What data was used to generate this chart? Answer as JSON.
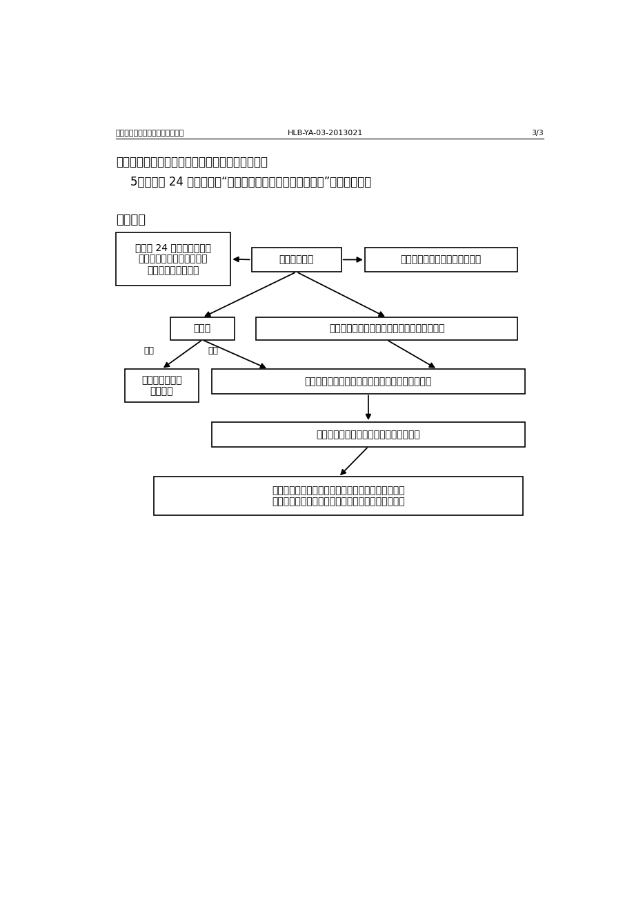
{
  "title_left": "用药错误的预防、应急预案及程序",
  "title_center": "HLB-YA-03-2013021",
  "title_right": "3/3",
  "intro_line1": "封存时，按《医疗事故处理条例》有关程序进行。",
  "intro_line2": "    5．护士长 24 小时内填写“医疗安全不良事件及隐患报告表”上报护理部。",
  "section_title": "【程序】",
  "node_nurse_report": "护士长 24 小时内填写医疗\n安全不良事件及隐患报告表\n上报护理部和医务部",
  "node_error": "发生用药错误",
  "node_report_doctor": "及时报告医生、护士长、科主任",
  "node_oral_drug": "口服药",
  "node_iv_drug": "静脉给药：立即停止输注，更换液体及输液器",
  "node_not_taken": "更换正确药物，\n做好解释",
  "node_rescue": "根据药物及病人情况，遵医嘱采取相应的补救措施",
  "node_record": "记录患者生命体征、一般情况和抗救过程",
  "node_family": "做好家属安扁工作，若有异议且无法协调时，立即按\n照有关程序对对输液器具或药品或护理文书进行封存",
  "label_not_taken": "未服",
  "label_taken": "已服",
  "bg_color": "#ffffff",
  "box_color": "#ffffff",
  "box_edge": "#000000",
  "font_color": "#000000",
  "arrow_color": "#000000",
  "line_color": "#000000"
}
